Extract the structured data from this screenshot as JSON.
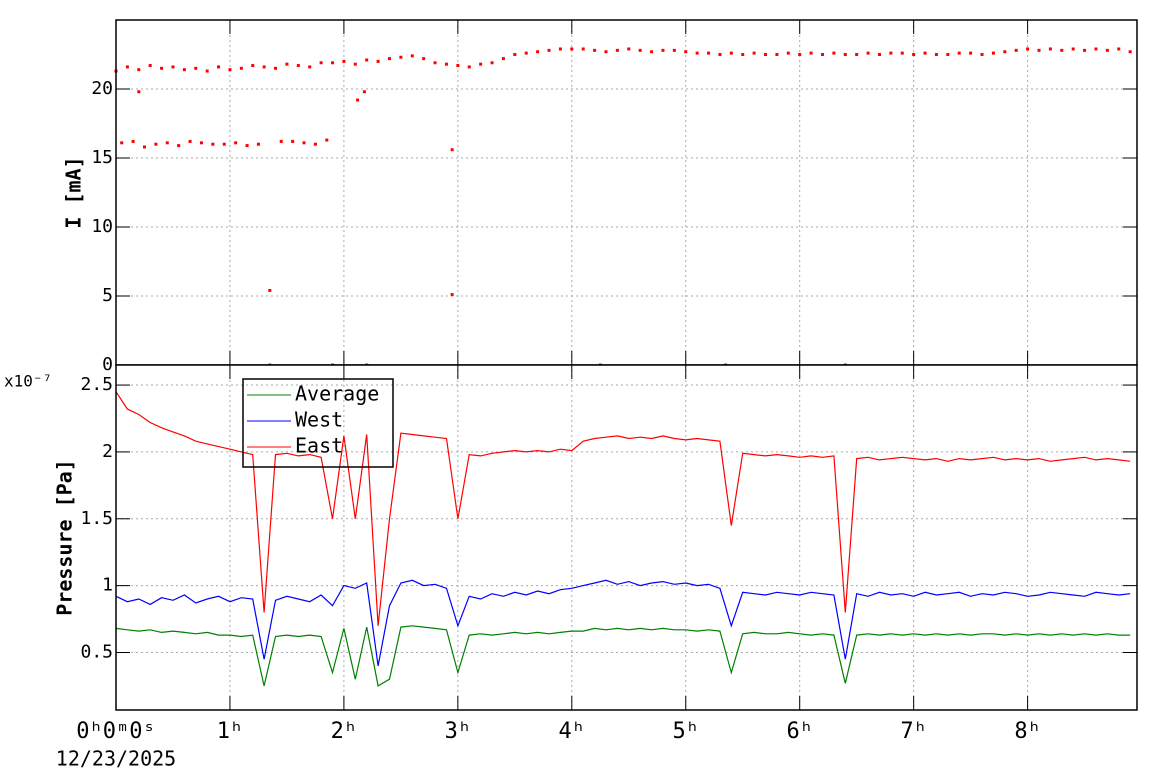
{
  "chart_data": [
    {
      "type": "scatter",
      "ylabel": "I [mA]",
      "ylim": [
        0,
        25
      ],
      "yticks": [
        0,
        5,
        10,
        15,
        20
      ],
      "xlim": [
        0,
        8.96
      ],
      "xticks": [
        0,
        1,
        2,
        3,
        4,
        5,
        6,
        7,
        8
      ],
      "x_tick_labels": false,
      "grid": true,
      "series": [
        {
          "color": "#ff0000",
          "x": [
            0,
            0.1,
            0.2,
            0.3,
            0.4,
            0.5,
            0.6,
            0.7,
            0.8,
            0.9,
            1,
            1.1,
            1.2,
            1.3,
            1.4,
            1.5,
            1.6,
            1.7,
            1.8,
            1.9,
            2,
            2.1,
            2.2,
            2.3,
            2.4,
            2.5,
            2.6,
            2.7,
            2.8,
            2.9,
            3,
            3.1,
            3.2,
            3.3,
            3.4,
            3.5,
            3.6,
            3.7,
            3.8,
            3.9,
            4,
            4.1,
            4.2,
            4.3,
            4.4,
            4.5,
            4.6,
            4.7,
            4.8,
            4.9,
            5,
            5.1,
            5.2,
            5.3,
            5.4,
            5.5,
            5.6,
            5.7,
            5.8,
            5.9,
            6,
            6.1,
            6.2,
            6.3,
            6.4,
            6.5,
            6.6,
            6.7,
            6.8,
            6.9,
            7,
            7.1,
            7.2,
            7.3,
            7.4,
            7.5,
            7.6,
            7.7,
            7.8,
            7.9,
            8,
            8.1,
            8.2,
            8.3,
            8.4,
            8.5,
            8.6,
            8.7,
            8.8,
            8.9
          ],
          "values": [
            21.3,
            21.6,
            21.4,
            21.7,
            21.5,
            21.6,
            21.4,
            21.5,
            21.3,
            21.6,
            21.4,
            21.5,
            21.7,
            21.6,
            21.5,
            21.8,
            21.7,
            21.6,
            21.9,
            21.9,
            22.0,
            21.8,
            22.1,
            22.0,
            22.2,
            22.3,
            22.4,
            22.2,
            21.9,
            21.8,
            21.7,
            21.6,
            21.8,
            21.9,
            22.2,
            22.5,
            22.6,
            22.7,
            22.8,
            22.9,
            22.9,
            22.9,
            22.8,
            22.7,
            22.8,
            22.9,
            22.8,
            22.7,
            22.8,
            22.8,
            22.7,
            22.6,
            22.6,
            22.5,
            22.6,
            22.5,
            22.6,
            22.5,
            22.5,
            22.6,
            22.5,
            22.6,
            22.5,
            22.6,
            22.5,
            22.5,
            22.6,
            22.5,
            22.6,
            22.6,
            22.5,
            22.6,
            22.5,
            22.5,
            22.6,
            22.6,
            22.5,
            22.6,
            22.7,
            22.8,
            22.9,
            22.8,
            22.9,
            22.8,
            22.9,
            22.8,
            22.9,
            22.8,
            22.9,
            22.7
          ]
        },
        {
          "color": "#ff0000",
          "x": [
            0.05,
            0.15,
            0.25,
            0.35,
            0.45,
            0.55,
            0.65,
            0.75,
            0.85,
            0.95,
            1.05,
            1.15,
            1.25,
            1.45,
            1.55,
            1.65,
            1.75,
            1.85,
            1.35,
            2.95,
            2.95,
            2.12,
            2.18,
            0.2,
            1.35,
            1.9,
            2.2,
            4.25,
            5.35,
            6.4
          ],
          "values": [
            16.1,
            16.2,
            15.8,
            16.0,
            16.1,
            15.9,
            16.2,
            16.1,
            16.0,
            16.0,
            16.1,
            15.9,
            16.0,
            16.2,
            16.2,
            16.1,
            16.0,
            16.3,
            5.4,
            5.1,
            15.6,
            19.2,
            19.8,
            19.8,
            0,
            0,
            0,
            0,
            0,
            0
          ]
        }
      ]
    },
    {
      "type": "line",
      "ylabel": "Pressure [Pa]",
      "y_multiplier": "x10⁻⁷",
      "ylim": [
        0.07,
        2.65
      ],
      "yticks": [
        0.5,
        1,
        1.5,
        2,
        2.5
      ],
      "xlim": [
        0,
        8.96
      ],
      "xticks": [
        {
          "value": 0,
          "label": "0ʰ0ᵐ0ˢ"
        },
        {
          "value": 1,
          "label": "1ʰ"
        },
        {
          "value": 2,
          "label": "2ʰ"
        },
        {
          "value": 3,
          "label": "3ʰ"
        },
        {
          "value": 4,
          "label": "4ʰ"
        },
        {
          "value": 5,
          "label": "5ʰ"
        },
        {
          "value": 6,
          "label": "6ʰ"
        },
        {
          "value": 7,
          "label": "7ʰ"
        },
        {
          "value": 8,
          "label": "8ʰ"
        }
      ],
      "x_start_date": "12/23/2025",
      "grid": true,
      "legend": "top-left",
      "x": [
        0,
        0.1,
        0.2,
        0.3,
        0.4,
        0.5,
        0.6,
        0.7,
        0.8,
        0.9,
        1,
        1.1,
        1.2,
        1.3,
        1.4,
        1.5,
        1.6,
        1.7,
        1.8,
        1.9,
        2,
        2.1,
        2.2,
        2.3,
        2.4,
        2.5,
        2.6,
        2.7,
        2.8,
        2.9,
        3,
        3.1,
        3.2,
        3.3,
        3.4,
        3.5,
        3.6,
        3.7,
        3.8,
        3.9,
        4,
        4.1,
        4.2,
        4.3,
        4.4,
        4.5,
        4.6,
        4.7,
        4.8,
        4.9,
        5,
        5.1,
        5.2,
        5.3,
        5.4,
        5.5,
        5.6,
        5.7,
        5.8,
        5.9,
        6,
        6.1,
        6.2,
        6.3,
        6.4,
        6.5,
        6.6,
        6.7,
        6.8,
        6.9,
        7,
        7.1,
        7.2,
        7.3,
        7.4,
        7.5,
        7.6,
        7.7,
        7.8,
        7.9,
        8,
        8.1,
        8.2,
        8.3,
        8.4,
        8.5,
        8.6,
        8.7,
        8.8,
        8.9
      ],
      "series": [
        {
          "name": "Average",
          "color": "#008000",
          "values": [
            0.68,
            0.67,
            0.66,
            0.67,
            0.65,
            0.66,
            0.65,
            0.64,
            0.65,
            0.63,
            0.63,
            0.62,
            0.63,
            0.25,
            0.62,
            0.63,
            0.62,
            0.63,
            0.62,
            0.35,
            0.68,
            0.3,
            0.69,
            0.25,
            0.3,
            0.69,
            0.7,
            0.69,
            0.68,
            0.67,
            0.35,
            0.63,
            0.64,
            0.63,
            0.64,
            0.65,
            0.64,
            0.65,
            0.64,
            0.65,
            0.66,
            0.66,
            0.68,
            0.67,
            0.68,
            0.67,
            0.68,
            0.67,
            0.68,
            0.67,
            0.67,
            0.66,
            0.67,
            0.66,
            0.35,
            0.64,
            0.65,
            0.64,
            0.64,
            0.65,
            0.64,
            0.63,
            0.64,
            0.63,
            0.27,
            0.63,
            0.64,
            0.63,
            0.64,
            0.63,
            0.64,
            0.63,
            0.64,
            0.63,
            0.64,
            0.63,
            0.64,
            0.64,
            0.63,
            0.64,
            0.63,
            0.64,
            0.63,
            0.64,
            0.63,
            0.64,
            0.63,
            0.64,
            0.63,
            0.63
          ]
        },
        {
          "name": "West",
          "color": "#0000ff",
          "values": [
            0.92,
            0.88,
            0.9,
            0.86,
            0.91,
            0.89,
            0.93,
            0.87,
            0.9,
            0.92,
            0.88,
            0.91,
            0.9,
            0.45,
            0.89,
            0.92,
            0.9,
            0.88,
            0.93,
            0.85,
            1.0,
            0.98,
            1.02,
            0.4,
            0.85,
            1.02,
            1.04,
            1.0,
            1.01,
            0.98,
            0.7,
            0.92,
            0.9,
            0.94,
            0.92,
            0.95,
            0.93,
            0.96,
            0.94,
            0.97,
            0.98,
            1.0,
            1.02,
            1.04,
            1.01,
            1.03,
            1.0,
            1.02,
            1.03,
            1.01,
            1.02,
            1.0,
            1.01,
            0.98,
            0.7,
            0.95,
            0.94,
            0.93,
            0.95,
            0.94,
            0.93,
            0.95,
            0.94,
            0.93,
            0.45,
            0.94,
            0.92,
            0.95,
            0.93,
            0.94,
            0.92,
            0.95,
            0.93,
            0.94,
            0.95,
            0.92,
            0.94,
            0.93,
            0.95,
            0.94,
            0.92,
            0.93,
            0.95,
            0.94,
            0.93,
            0.92,
            0.95,
            0.94,
            0.93,
            0.94
          ]
        },
        {
          "name": "East",
          "color": "#ff0000",
          "values": [
            2.45,
            2.32,
            2.28,
            2.22,
            2.18,
            2.15,
            2.12,
            2.08,
            2.06,
            2.04,
            2.02,
            2.0,
            1.98,
            0.8,
            1.98,
            1.99,
            1.97,
            1.98,
            1.96,
            1.5,
            2.12,
            1.5,
            2.13,
            0.7,
            1.5,
            2.14,
            2.13,
            2.12,
            2.11,
            2.1,
            1.5,
            1.98,
            1.97,
            1.99,
            2.0,
            2.01,
            2.0,
            2.01,
            2.0,
            2.02,
            2.01,
            2.08,
            2.1,
            2.11,
            2.12,
            2.1,
            2.11,
            2.1,
            2.12,
            2.1,
            2.09,
            2.1,
            2.09,
            2.08,
            1.45,
            1.99,
            1.98,
            1.97,
            1.98,
            1.97,
            1.96,
            1.97,
            1.96,
            1.97,
            0.8,
            1.95,
            1.96,
            1.94,
            1.95,
            1.96,
            1.95,
            1.94,
            1.95,
            1.93,
            1.95,
            1.94,
            1.95,
            1.96,
            1.94,
            1.95,
            1.94,
            1.95,
            1.93,
            1.94,
            1.95,
            1.96,
            1.94,
            1.95,
            1.94,
            1.93
          ]
        }
      ]
    }
  ]
}
